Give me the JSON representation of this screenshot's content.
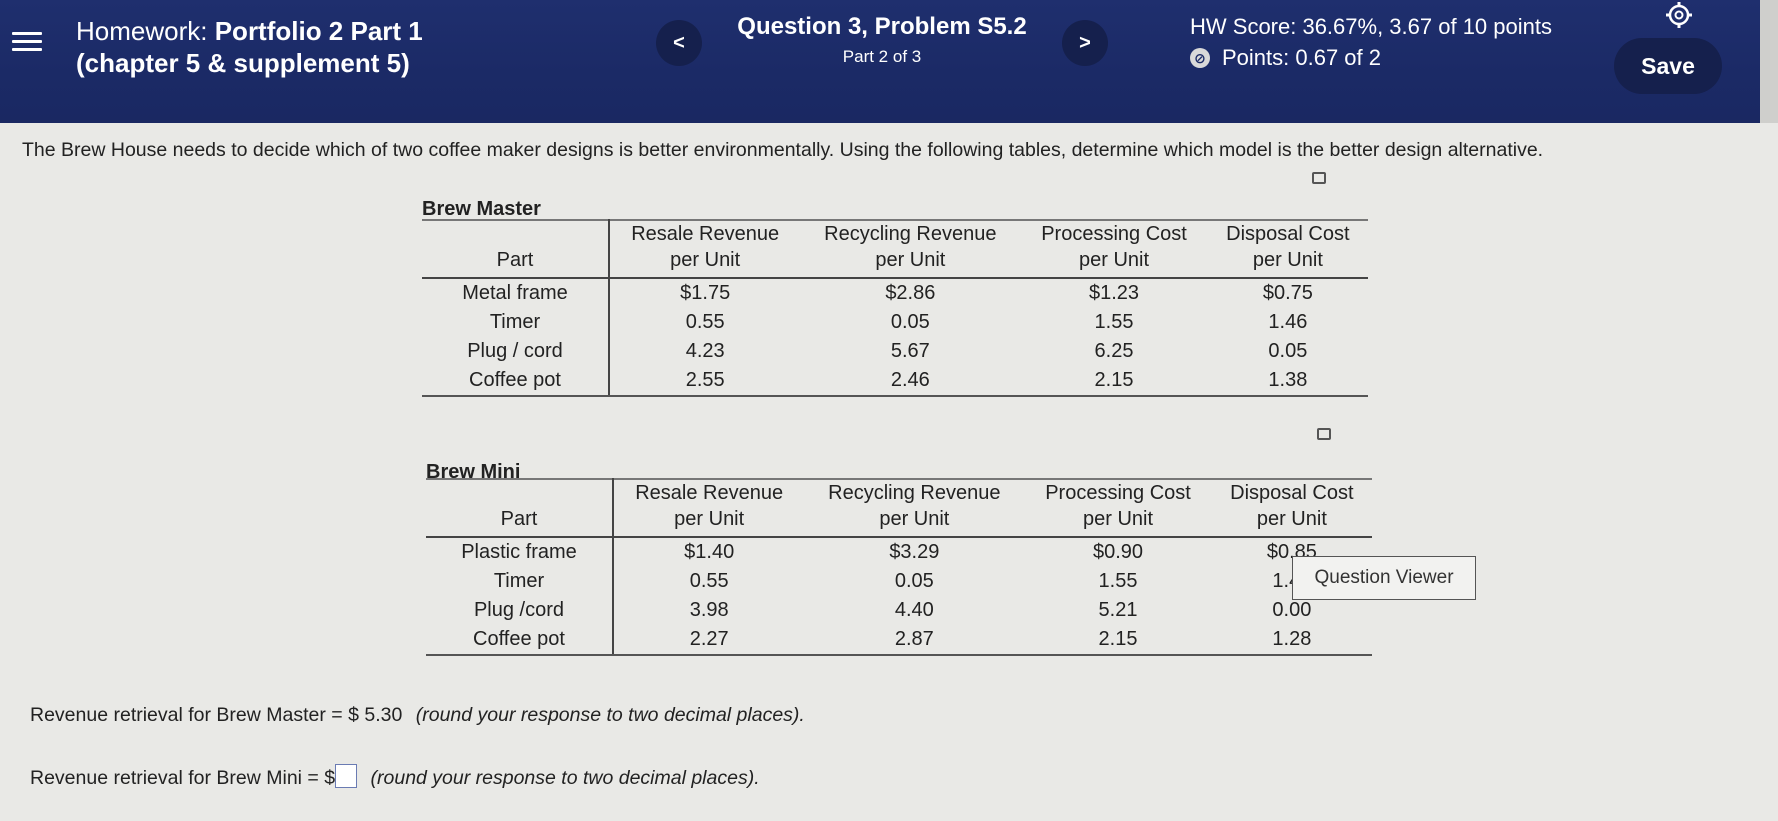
{
  "header": {
    "title_line1_prefix": "Homework:",
    "title_line1_main": "Portfolio 2 Part 1",
    "title_line2": "(chapter 5 & supplement 5)",
    "question_title": "Question 3, Problem S5.2",
    "question_part": "Part 2 of 3",
    "hw_score": "HW Score: 36.67%, 3.67 of 10 points",
    "points": "Points: 0.67 of 2",
    "save_label": "Save",
    "prev_label": "<",
    "next_label": ">"
  },
  "prompt": "The Brew House needs to decide which of two coffee maker designs is better environmentally. Using the following tables, determine which model is the better design alternative.",
  "tables": [
    {
      "title": "Brew Master",
      "headers": [
        "Part",
        "Resale Revenue\nper Unit",
        "Recycling Revenue\nper Unit",
        "Processing Cost\nper Unit",
        "Disposal Cost\nper Unit"
      ],
      "rows": [
        [
          "Metal frame",
          "$1.75",
          "$2.86",
          "$1.23",
          "$0.75"
        ],
        [
          "Timer",
          "0.55",
          "0.05",
          "1.55",
          "1.46"
        ],
        [
          "Plug / cord",
          "4.23",
          "5.67",
          "6.25",
          "0.05"
        ],
        [
          "Coffee pot",
          "2.55",
          "2.46",
          "2.15",
          "1.38"
        ]
      ]
    },
    {
      "title": "Brew Mini",
      "headers": [
        "Part",
        "Resale Revenue\nper Unit",
        "Recycling Revenue\nper Unit",
        "Processing Cost\nper Unit",
        "Disposal Cost\nper Unit"
      ],
      "rows": [
        [
          "Plastic frame",
          "$1.40",
          "$3.29",
          "$0.90",
          "$0.85"
        ],
        [
          "Timer",
          "0.55",
          "0.05",
          "1.55",
          "1.46"
        ],
        [
          "Plug /cord",
          "3.98",
          "4.40",
          "5.21",
          "0.00"
        ],
        [
          "Coffee pot",
          "2.27",
          "2.87",
          "2.15",
          "1.28"
        ]
      ]
    }
  ],
  "question_viewer_label": "Question Viewer",
  "answers": {
    "master_label": "Revenue retrieval for Brew Master = $",
    "master_value": "5.30",
    "mini_label": "Revenue retrieval for Brew Mini = $",
    "mini_value": "",
    "instruction": "(round your response to two decimal places)."
  }
}
